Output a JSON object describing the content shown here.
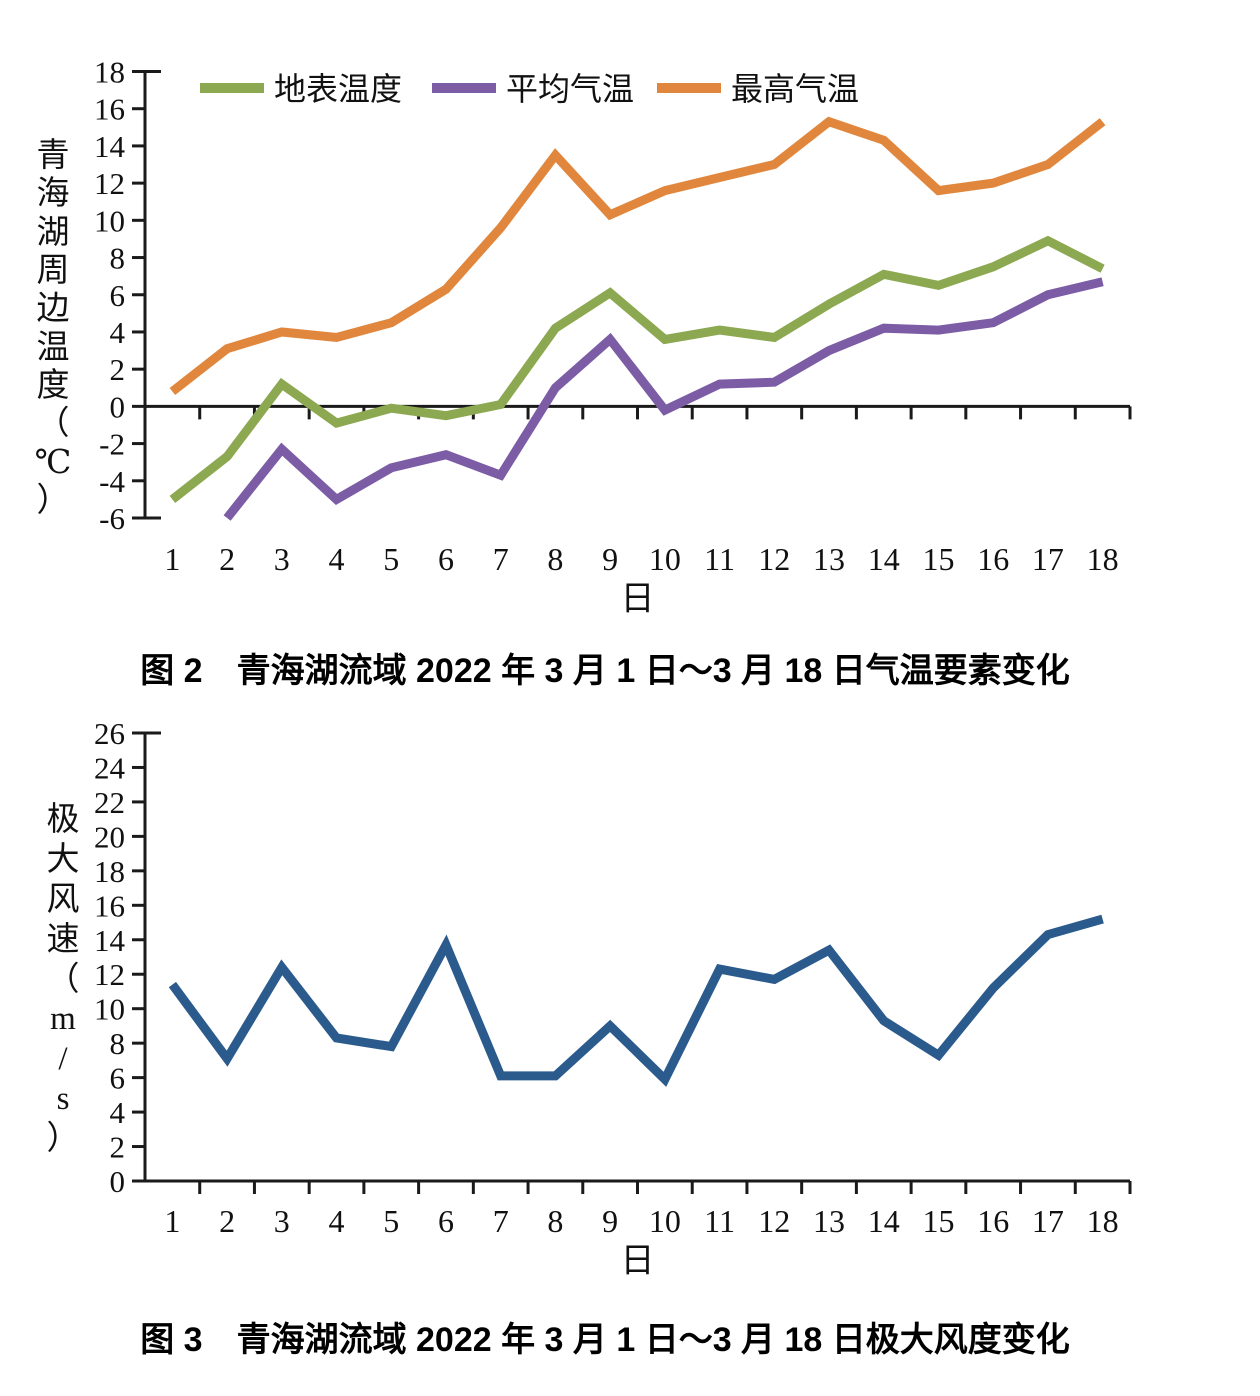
{
  "figure": {
    "background": "#ffffff",
    "text_color": "#111111",
    "axis_color": "#1a1a1a"
  },
  "chart_data": [
    {
      "type": "line",
      "name": "temperature",
      "caption": "图 2　青海湖流域 2022 年 3 月 1 日～3 月 18 日气温要素变化",
      "ylabel": "青海湖周边温度（℃）",
      "xlabel": "日",
      "categories": [
        "1",
        "2",
        "3",
        "4",
        "5",
        "6",
        "7",
        "8",
        "9",
        "10",
        "11",
        "12",
        "13",
        "14",
        "15",
        "16",
        "17",
        "18"
      ],
      "ylim": [
        -6,
        18
      ],
      "yticks": [
        18,
        16,
        14,
        12,
        10,
        8,
        6,
        4,
        2,
        0,
        -2,
        -4,
        -6
      ],
      "baseline": 0,
      "grid": false,
      "legend_position": "top-inside",
      "series": [
        {
          "name": "地表温度",
          "color": "#8CA951",
          "values": [
            -5.0,
            -2.7,
            1.2,
            -0.9,
            -0.1,
            -0.5,
            0.1,
            4.2,
            6.1,
            3.6,
            4.1,
            3.7,
            5.5,
            7.1,
            6.5,
            7.5,
            8.9,
            7.4
          ]
        },
        {
          "name": "平均气温",
          "color": "#7B5CA5",
          "values": [
            null,
            -6.0,
            -2.3,
            -5.0,
            -3.3,
            -2.6,
            -3.7,
            1.0,
            3.6,
            -0.2,
            1.2,
            1.3,
            3.0,
            4.2,
            4.1,
            4.5,
            6.0,
            6.7
          ]
        },
        {
          "name": "最高气温",
          "color": "#E1873D",
          "values": [
            0.8,
            3.1,
            4.0,
            3.7,
            4.5,
            6.3,
            9.6,
            13.5,
            10.3,
            11.6,
            12.3,
            13.0,
            15.3,
            14.3,
            11.6,
            12.0,
            13.0,
            15.3
          ]
        }
      ]
    },
    {
      "type": "line",
      "name": "wind-speed",
      "caption": "图 3　青海湖流域 2022 年 3 月 1 日～3 月 18 日极大风度变化",
      "ylabel": "极大风速（m/s）",
      "xlabel": "日",
      "categories": [
        "1",
        "2",
        "3",
        "4",
        "5",
        "6",
        "7",
        "8",
        "9",
        "10",
        "11",
        "12",
        "13",
        "14",
        "15",
        "16",
        "17",
        "18"
      ],
      "ylim": [
        0,
        26
      ],
      "yticks": [
        26,
        24,
        22,
        20,
        18,
        16,
        14,
        12,
        10,
        8,
        6,
        4,
        2,
        0
      ],
      "baseline": 0,
      "grid": false,
      "legend_position": "none",
      "series": [
        {
          "name": "极大风速",
          "color": "#2B5B8D",
          "values": [
            11.4,
            7.1,
            12.4,
            8.3,
            7.8,
            13.7,
            6.1,
            6.1,
            9.0,
            5.9,
            12.3,
            11.7,
            13.4,
            9.3,
            7.3,
            11.2,
            14.3,
            15.2
          ]
        }
      ]
    }
  ]
}
